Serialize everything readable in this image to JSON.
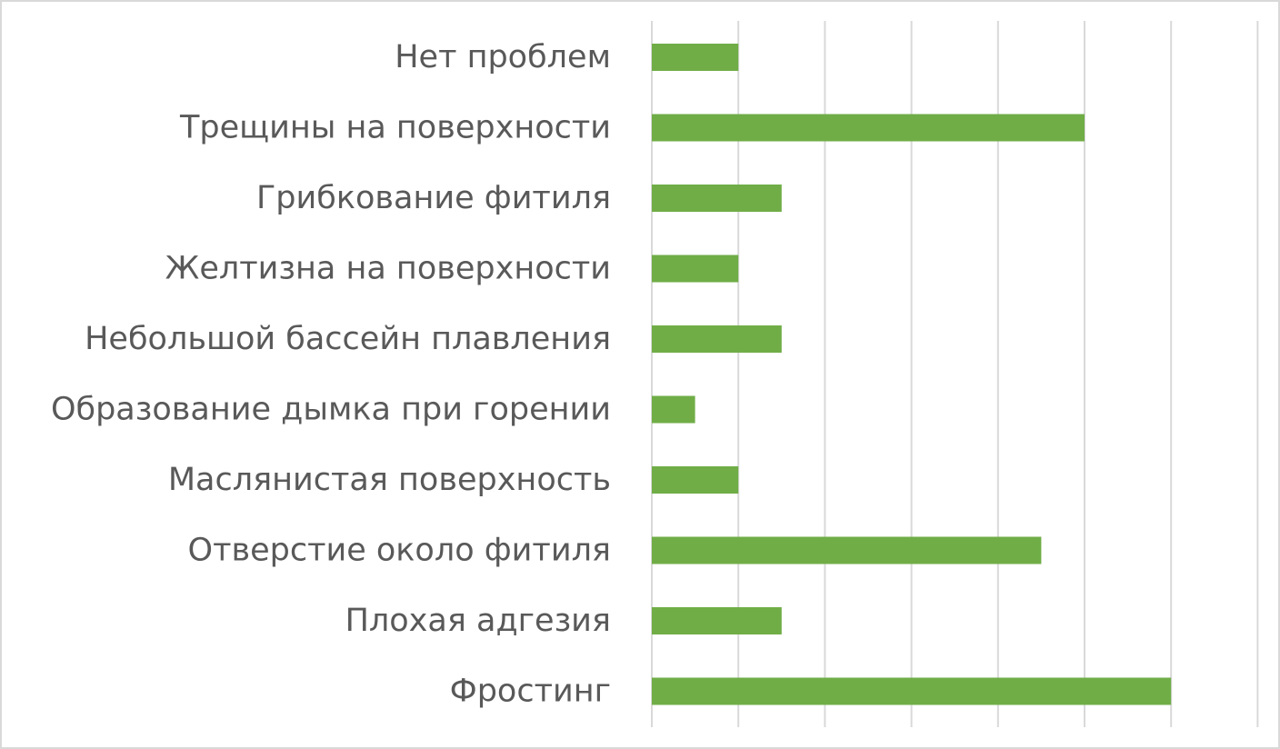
{
  "chart_data": {
    "type": "bar",
    "orientation": "horizontal",
    "title": "",
    "xlabel": "",
    "ylabel": "",
    "categories": [
      "Нет проблем",
      "Трещины на поверхности",
      "Грибкование фитиля",
      "Желтизна на поверхности",
      "Небольшой бассейн плавления",
      "Образование дымка при горении",
      "Маслянистая поверхность",
      "Отверстие около фитиля",
      "Плохая адгезия",
      "Фростинг"
    ],
    "values": [
      1,
      5,
      1.5,
      1,
      1.5,
      0.5,
      1,
      4.5,
      1.5,
      6
    ],
    "xlim": [
      0,
      7
    ],
    "grid": true,
    "tick_labels_visible": false,
    "bar_color": "#70ad47",
    "label_color": "#595959",
    "grid_color": "#d9d9d9"
  }
}
